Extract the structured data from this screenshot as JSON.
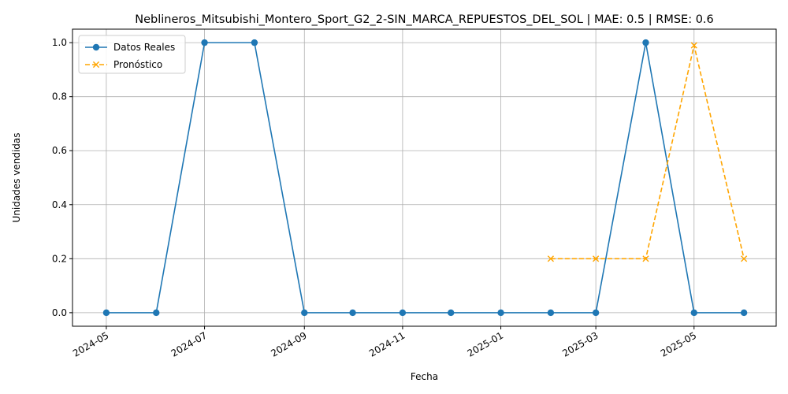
{
  "chart_data": {
    "type": "line",
    "title": "Neblineros_Mitsubishi_Montero_Sport_G2_2-SIN_MARCA_REPUESTOS_DEL_SOL | MAE: 0.5 | RMSE: 0.6",
    "xlabel": "Fecha",
    "ylabel": "Unidades vendidas",
    "xlim": [
      "2024-04-10",
      "2025-06-21"
    ],
    "ylim": [
      -0.05,
      1.05
    ],
    "x_ticks": [
      "2024-05",
      "2024-07",
      "2024-09",
      "2024-11",
      "2025-01",
      "2025-03",
      "2025-05"
    ],
    "y_ticks": [
      "0.0",
      "0.2",
      "0.4",
      "0.6",
      "0.8",
      "1.0"
    ],
    "grid": true,
    "legend_position": "top-left",
    "series": [
      {
        "name": "Datos Reales",
        "color": "#1f77b4",
        "line_style": "solid",
        "marker": "circle",
        "points": [
          {
            "x": "2024-05-01",
            "y": 0
          },
          {
            "x": "2024-06-01",
            "y": 0
          },
          {
            "x": "2024-07-01",
            "y": 1
          },
          {
            "x": "2024-08-01",
            "y": 1
          },
          {
            "x": "2024-09-01",
            "y": 0
          },
          {
            "x": "2024-10-01",
            "y": 0
          },
          {
            "x": "2024-11-01",
            "y": 0
          },
          {
            "x": "2024-12-01",
            "y": 0
          },
          {
            "x": "2025-01-01",
            "y": 0
          },
          {
            "x": "2025-02-01",
            "y": 0
          },
          {
            "x": "2025-03-01",
            "y": 0
          },
          {
            "x": "2025-04-01",
            "y": 1
          },
          {
            "x": "2025-05-01",
            "y": 0
          },
          {
            "x": "2025-06-01",
            "y": 0
          }
        ]
      },
      {
        "name": "Pronóstico",
        "color": "#ffa500",
        "line_style": "dashed",
        "marker": "x",
        "points": [
          {
            "x": "2025-02-01",
            "y": 0.2
          },
          {
            "x": "2025-03-01",
            "y": 0.2
          },
          {
            "x": "2025-04-01",
            "y": 0.2
          },
          {
            "x": "2025-05-01",
            "y": 0.99
          },
          {
            "x": "2025-06-01",
            "y": 0.2
          }
        ]
      }
    ]
  }
}
